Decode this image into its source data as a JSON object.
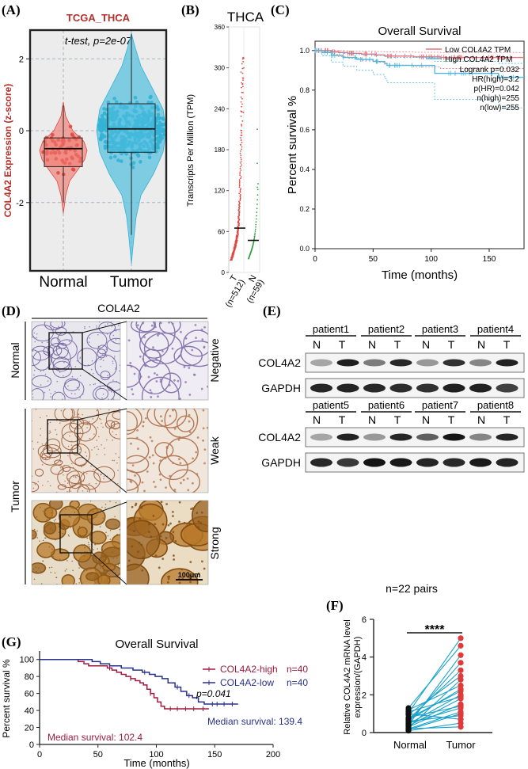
{
  "panels": {
    "A": "(A)",
    "B": "(B)",
    "C": "(C)",
    "D": "(D)",
    "E": "(E)",
    "F": "(F)",
    "G": "(G)"
  },
  "colors": {
    "normal": "#e04a45",
    "normal_fill": "#f08a80",
    "tumor": "#34b3d6",
    "tumor_fill": "#58c1df",
    "km_low": "#e57580",
    "km_high": "#4fb6dc",
    "g_high": "#9e1b3f",
    "g_low": "#27318b",
    "f_normal": "#111111",
    "f_tumor": "#e03a3a",
    "f_line": "#1aa2c9"
  },
  "panel_a": {
    "title": "TCGA_THCA",
    "annotation": "t-test, p=2e-07",
    "ylabel": "COL4A2 Expression (z-score)",
    "categories": [
      "Normal",
      "Tumor"
    ],
    "ylim": [
      -3.9,
      2.8
    ],
    "yticks": [
      {
        "v": 2,
        "t": "2"
      },
      {
        "v": 0,
        "t": "0"
      },
      {
        "v": -2,
        "t": "-2"
      }
    ],
    "box": {
      "Normal": {
        "q1": -1.0,
        "median": -0.5,
        "q3": -0.2,
        "wlo": -2.0,
        "whi": 0.7
      },
      "Tumor": {
        "q1": -0.6,
        "median": 0.05,
        "q3": 0.75,
        "wlo": -2.9,
        "whi": 2.7
      }
    }
  },
  "panel_b": {
    "title": "THCA",
    "ylabel": "Transcripts Per Million (TPM)",
    "ylim": [
      0,
      360
    ],
    "yticks": [
      {
        "v": 0,
        "t": "0"
      },
      {
        "v": 60,
        "t": "60"
      },
      {
        "v": 120,
        "t": "120"
      },
      {
        "v": 180,
        "t": "180"
      },
      {
        "v": 240,
        "t": "240"
      },
      {
        "v": 300,
        "t": "300"
      },
      {
        "v": 360,
        "t": "360"
      }
    ],
    "groups": [
      {
        "label": "T",
        "n": "(n=512)",
        "median": 65
      },
      {
        "label": "N",
        "n": "(n=59)",
        "median": 47
      }
    ]
  },
  "panel_c": {
    "title": "Overall Survival",
    "xlabel": "Time (months)",
    "ylabel": "Percent survival %",
    "xlim": [
      0,
      180
    ],
    "ylim": [
      0,
      1
    ],
    "xticks": [
      {
        "v": 0,
        "t": "0"
      },
      {
        "v": 50,
        "t": "50"
      },
      {
        "v": 100,
        "t": "100"
      },
      {
        "v": 150,
        "t": "150"
      }
    ],
    "yticks": [
      {
        "v": 0,
        "t": "0.0"
      },
      {
        "v": 0.2,
        "t": "0.2"
      },
      {
        "v": 0.4,
        "t": "0.4"
      },
      {
        "v": 0.6,
        "t": "0.6"
      },
      {
        "v": 0.8,
        "t": "0.8"
      },
      {
        "v": 1,
        "t": "1.0"
      }
    ],
    "legend": [
      "Low COL4A2 TPM",
      "High COL4A2 TPM"
    ],
    "stats": [
      "Logrank p=0.032",
      "HR(high)=3.2",
      "p(HR)=0.042",
      "n(high)=255",
      "n(low)=255"
    ],
    "series": [
      {
        "name": "Low COL4A2 TPM",
        "x": [
          0,
          6,
          14,
          20,
          28,
          40,
          52,
          60,
          85,
          108,
          180
        ],
        "y": [
          1,
          1,
          0.994,
          0.99,
          0.986,
          0.982,
          0.978,
          0.972,
          0.968,
          0.965,
          0.965
        ]
      },
      {
        "name": "High COL4A2 TPM",
        "x": [
          0,
          6,
          14,
          24,
          36,
          50,
          60,
          62,
          100,
          103,
          148,
          158,
          180
        ],
        "y": [
          1,
          0.99,
          0.975,
          0.965,
          0.955,
          0.945,
          0.935,
          0.925,
          0.925,
          0.885,
          0.885,
          0.865,
          0.865
        ]
      }
    ]
  },
  "panel_d": {
    "title": "COL4A2",
    "rows": [
      "Normal",
      "Tumor"
    ],
    "intensity": [
      "Negative",
      "Weak",
      "Strong"
    ],
    "scale": "100μm"
  },
  "panel_e": {
    "top_patients": [
      "patient1",
      "patient2",
      "patient3",
      "patient4"
    ],
    "bottom_patients": [
      "patient5",
      "patient6",
      "patient7",
      "patient8"
    ],
    "lanes": [
      "N",
      "T"
    ],
    "bands": [
      "COL4A2",
      "GAPDH"
    ]
  },
  "panel_f": {
    "title": "n=22 pairs",
    "ylabel": "Relative COL4A2 mRNA level expression/(GAPDH)",
    "categories": [
      "Normal",
      "Tumor"
    ],
    "significance": "****",
    "ylim": [
      0,
      6
    ],
    "yticks": [
      {
        "v": 0,
        "t": "0"
      },
      {
        "v": 2,
        "t": "2"
      },
      {
        "v": 4,
        "t": "4"
      },
      {
        "v": 6,
        "t": "6"
      }
    ],
    "pairs": [
      [
        1.05,
        5.0
      ],
      [
        1.3,
        4.6
      ],
      [
        0.4,
        4.1
      ],
      [
        0.55,
        3.7
      ],
      [
        0.7,
        3.3
      ],
      [
        0.95,
        3.0
      ],
      [
        0.25,
        2.8
      ],
      [
        1.2,
        2.5
      ],
      [
        0.65,
        2.3
      ],
      [
        0.75,
        2.2
      ],
      [
        0.45,
        2.0
      ],
      [
        1.1,
        1.9
      ],
      [
        0.35,
        1.8
      ],
      [
        0.3,
        1.5
      ],
      [
        0.8,
        1.4
      ],
      [
        0.5,
        1.3
      ],
      [
        0.2,
        1.1
      ],
      [
        0.15,
        1.0
      ],
      [
        0.6,
        0.9
      ],
      [
        1.0,
        0.7
      ],
      [
        0.1,
        0.5
      ],
      [
        0.2,
        0.3
      ]
    ]
  },
  "panel_g": {
    "title": "Overall Survival",
    "xlabel": "Time (months)",
    "ylabel": "Percent survival %",
    "xlim": [
      0,
      200
    ],
    "ylim": [
      0,
      110
    ],
    "xticks": [
      {
        "v": 0,
        "t": "0"
      },
      {
        "v": 50,
        "t": "50"
      },
      {
        "v": 100,
        "t": "100"
      },
      {
        "v": 150,
        "t": "150"
      },
      {
        "v": 200,
        "t": "200"
      }
    ],
    "yticks": [
      {
        "v": 0,
        "t": "0"
      },
      {
        "v": 20,
        "t": "20"
      },
      {
        "v": 40,
        "t": "40"
      },
      {
        "v": 60,
        "t": "60"
      },
      {
        "v": 80,
        "t": "80"
      },
      {
        "v": 100,
        "t": "100"
      }
    ],
    "legend": [
      {
        "name": "COL4A2-high",
        "n": "n=40"
      },
      {
        "name": "COL4A2-low",
        "n": "n=40"
      }
    ],
    "pvalue": "p=0.041",
    "median_high": "Median survival: 102.4",
    "median_low": "Median survival: 139.4",
    "series": [
      {
        "name": "COL4A2-high",
        "x": [
          0,
          28,
          33,
          38,
          42,
          55,
          58,
          62,
          66,
          70,
          74,
          78,
          82,
          86,
          89,
          92,
          95,
          98,
          101,
          104,
          107,
          145
        ],
        "y": [
          100,
          100,
          97.5,
          95,
          92.5,
          92.5,
          90,
          87.5,
          85,
          82.5,
          80,
          77.5,
          75,
          72.5,
          70,
          65,
          60,
          55,
          50,
          45,
          42,
          42
        ]
      },
      {
        "name": "COL4A2-low",
        "x": [
          0,
          35,
          45,
          52,
          60,
          70,
          80,
          88,
          94,
          99,
          105,
          110,
          116,
          121,
          126,
          131,
          136,
          141,
          147,
          153,
          170
        ],
        "y": [
          100,
          100,
          97.5,
          95,
          92.5,
          90,
          87.5,
          85,
          82.5,
          80,
          77.5,
          72.5,
          67.5,
          62.5,
          57.5,
          55,
          50,
          47.5,
          47.5,
          47.5,
          47.5
        ]
      }
    ]
  }
}
